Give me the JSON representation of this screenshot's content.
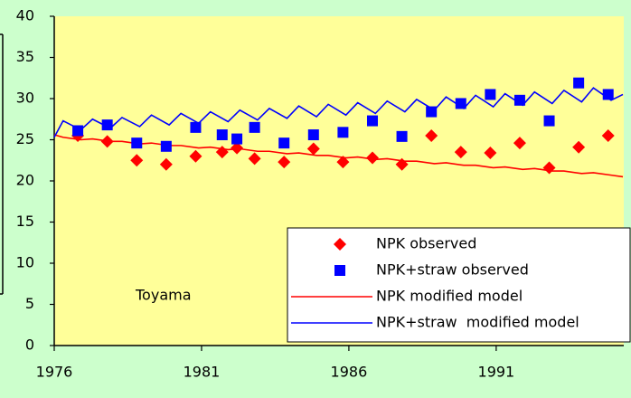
{
  "chart_data": {
    "type": "line",
    "annotation": "Toyama",
    "xlim": [
      1976,
      1995.33
    ],
    "xticks": [
      1976,
      1981,
      1986,
      1991
    ],
    "ylim": [
      0,
      40
    ],
    "yticks": [
      0,
      5,
      10,
      15,
      20,
      25,
      30,
      35,
      40
    ],
    "legend": "lower right",
    "series": [
      {
        "name": "NPK observed",
        "type": "scatter",
        "marker": "diamond",
        "color": "#ff0000",
        "x": [
          1976.8,
          1977.8,
          1978.8,
          1979.8,
          1980.8,
          1981.7,
          1982.2,
          1982.8,
          1983.8,
          1984.8,
          1985.8,
          1986.8,
          1987.8,
          1988.8,
          1989.8,
          1990.8,
          1991.8,
          1992.8,
          1993.8,
          1994.8
        ],
        "values": [
          25.5,
          24.8,
          22.5,
          22.0,
          23.0,
          23.5,
          24.0,
          22.7,
          22.3,
          23.9,
          22.3,
          22.8,
          22.0,
          25.5,
          23.5,
          23.4,
          24.6,
          21.6,
          24.1,
          25.5
        ]
      },
      {
        "name": "NPK+straw observed",
        "type": "scatter",
        "marker": "square",
        "color": "#0000ff",
        "x": [
          1976.8,
          1977.8,
          1978.8,
          1979.8,
          1980.8,
          1981.7,
          1982.2,
          1982.8,
          1983.8,
          1984.8,
          1985.8,
          1986.8,
          1987.8,
          1988.8,
          1989.8,
          1990.8,
          1991.8,
          1992.8,
          1993.8,
          1994.8
        ],
        "values": [
          26.1,
          26.8,
          24.6,
          24.2,
          26.5,
          25.6,
          25.1,
          26.5,
          24.6,
          25.6,
          25.9,
          27.3,
          25.4,
          28.4,
          29.4,
          30.5,
          29.8,
          27.3,
          31.9,
          30.5
        ]
      },
      {
        "name": "NPK modified model",
        "type": "line",
        "color": "#ff0000",
        "x": [
          1976.0,
          1976.3,
          1976.9,
          1977.3,
          1977.9,
          1978.3,
          1978.9,
          1979.3,
          1979.9,
          1980.3,
          1980.9,
          1981.3,
          1981.9,
          1982.3,
          1982.9,
          1983.3,
          1983.9,
          1984.3,
          1984.9,
          1985.3,
          1985.9,
          1986.3,
          1986.9,
          1987.3,
          1987.9,
          1988.3,
          1988.9,
          1989.3,
          1989.9,
          1990.3,
          1990.9,
          1991.3,
          1991.9,
          1992.3,
          1992.9,
          1993.3,
          1993.9,
          1994.3,
          1994.9,
          1995.3
        ],
        "values": [
          25.6,
          25.3,
          25.0,
          25.1,
          24.8,
          24.8,
          24.5,
          24.6,
          24.3,
          24.3,
          24.0,
          24.1,
          23.8,
          23.9,
          23.6,
          23.6,
          23.3,
          23.4,
          23.1,
          23.1,
          22.8,
          22.9,
          22.6,
          22.7,
          22.4,
          22.4,
          22.1,
          22.2,
          21.9,
          21.9,
          21.6,
          21.7,
          21.4,
          21.5,
          21.2,
          21.2,
          20.9,
          21.0,
          20.7,
          20.5
        ]
      },
      {
        "name": "NPK+straw  modified model",
        "type": "line",
        "color": "#0000ff",
        "x": [
          1976.0,
          1976.3,
          1976.9,
          1977.3,
          1977.9,
          1978.3,
          1978.9,
          1979.3,
          1979.9,
          1980.3,
          1980.9,
          1981.3,
          1981.9,
          1982.3,
          1982.9,
          1983.3,
          1983.9,
          1984.3,
          1984.9,
          1985.3,
          1985.9,
          1986.3,
          1986.9,
          1987.3,
          1987.9,
          1988.3,
          1988.9,
          1989.3,
          1989.9,
          1990.3,
          1990.9,
          1991.3,
          1991.9,
          1992.3,
          1992.9,
          1993.3,
          1993.9,
          1994.3,
          1994.9,
          1995.3
        ],
        "values": [
          25.3,
          27.3,
          26.2,
          27.5,
          26.4,
          27.7,
          26.6,
          28.0,
          26.8,
          28.2,
          27.0,
          28.4,
          27.2,
          28.6,
          27.4,
          28.8,
          27.6,
          29.1,
          27.8,
          29.3,
          28.0,
          29.5,
          28.2,
          29.7,
          28.4,
          29.9,
          28.6,
          30.2,
          28.8,
          30.4,
          29.0,
          30.6,
          29.2,
          30.8,
          29.4,
          31.0,
          29.6,
          31.3,
          29.8,
          30.5
        ]
      }
    ]
  }
}
